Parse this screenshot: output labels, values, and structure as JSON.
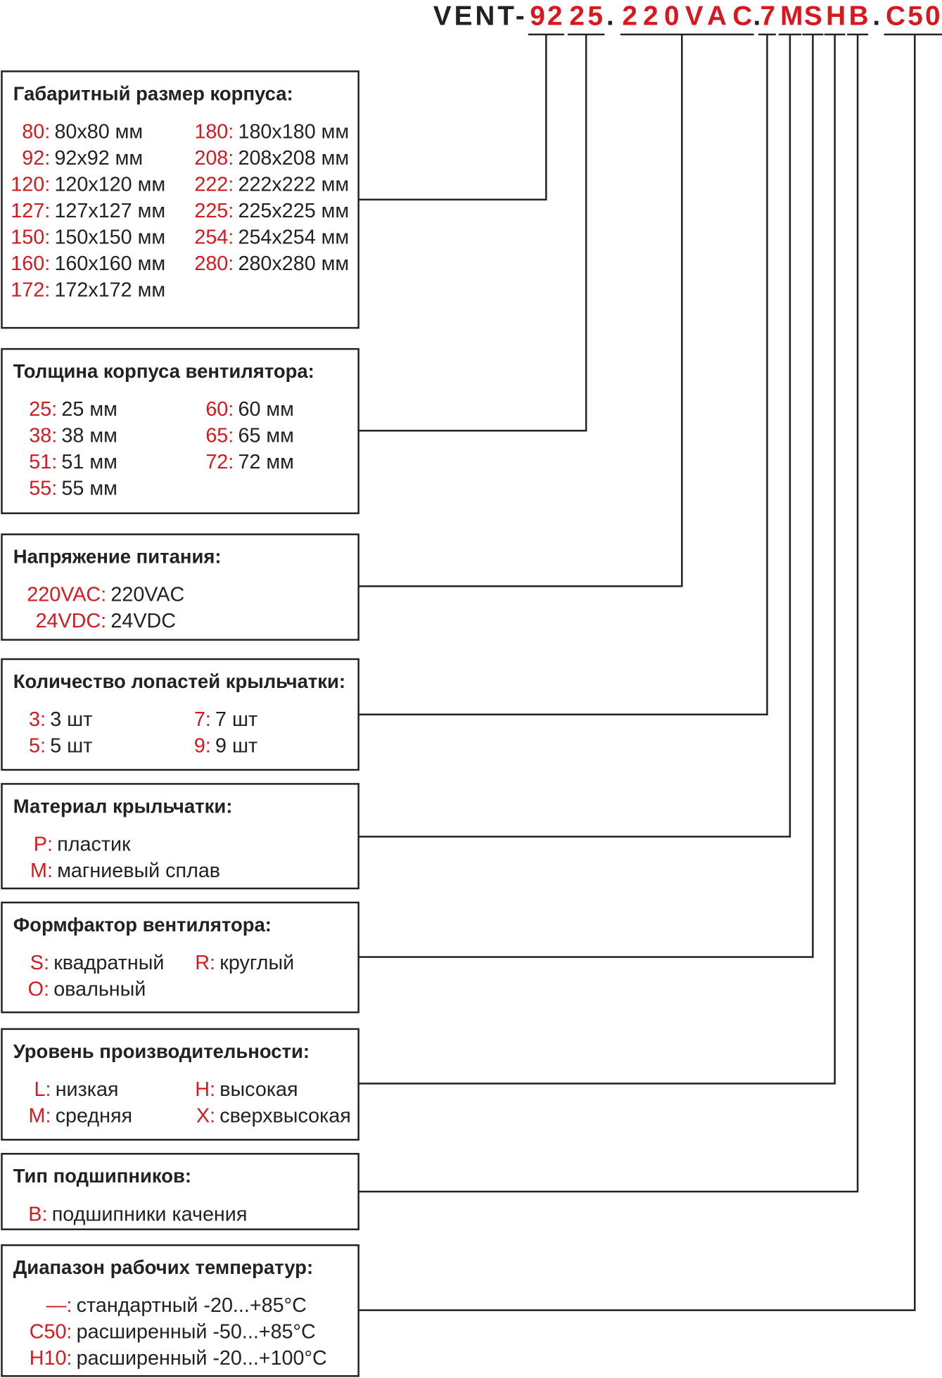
{
  "code": [
    {
      "text": "VENT-",
      "color": "#222222"
    },
    {
      "text": "92",
      "color": "#d7191f"
    },
    {
      "text": "25",
      "color": "#d7191f"
    },
    {
      "text": ".",
      "color": "#222222"
    },
    {
      "text": "220VAC",
      "color": "#d7191f"
    },
    {
      "text": ".",
      "color": "#222222"
    },
    {
      "text": "7",
      "color": "#d7191f"
    },
    {
      "text": "M",
      "color": "#d7191f"
    },
    {
      "text": "S",
      "color": "#d7191f"
    },
    {
      "text": "H",
      "color": "#d7191f"
    },
    {
      "text": "B",
      "color": "#d7191f"
    },
    {
      "text": ".",
      "color": "#222222"
    },
    {
      "text": "C50",
      "color": "#d7191f"
    }
  ],
  "sections": [
    {
      "title": "Габаритный размер корпуса:",
      "left": [
        {
          "code": "80:",
          "text": "80x80 мм"
        },
        {
          "code": "92:",
          "text": "92x92 мм"
        },
        {
          "code": "120:",
          "text": "120x120 мм"
        },
        {
          "code": "127:",
          "text": "127x127 мм"
        },
        {
          "code": "150:",
          "text": "150x150 мм"
        },
        {
          "code": "160:",
          "text": "160x160 мм"
        },
        {
          "code": "172:",
          "text": "172x172 мм"
        }
      ],
      "right": [
        {
          "code": "180:",
          "text": "180x180 мм"
        },
        {
          "code": "208:",
          "text": "208x208 мм"
        },
        {
          "code": "222:",
          "text": "222x222 мм"
        },
        {
          "code": "225:",
          "text": "225x225 мм"
        },
        {
          "code": "254:",
          "text": "254x254 мм"
        },
        {
          "code": "280:",
          "text": "280x280 мм"
        }
      ]
    },
    {
      "title": "Толщина корпуса вентилятора:",
      "left": [
        {
          "code": "25:",
          "text": "25 мм"
        },
        {
          "code": "38:",
          "text": "38 мм"
        },
        {
          "code": "51:",
          "text": "51 мм"
        },
        {
          "code": "55:",
          "text": "55 мм"
        }
      ],
      "right": [
        {
          "code": "60:",
          "text": "60 мм"
        },
        {
          "code": "65:",
          "text": "65 мм"
        },
        {
          "code": "72:",
          "text": "72 мм"
        }
      ]
    },
    {
      "title": "Напряжение питания:",
      "left": [
        {
          "code": "220VAC:",
          "text": "220VAC"
        },
        {
          "code": "24VDC:",
          "text": "24VDC"
        }
      ],
      "right": []
    },
    {
      "title": "Количество лопастей крыльчатки:",
      "left": [
        {
          "code": "3:",
          "text": "3 шт"
        },
        {
          "code": "5:",
          "text": "5 шт"
        }
      ],
      "right": [
        {
          "code": "7:",
          "text": "7 шт"
        },
        {
          "code": "9:",
          "text": "9 шт"
        }
      ]
    },
    {
      "title": "Материал крыльчатки:",
      "left": [
        {
          "code": "P:",
          "text": "пластик"
        },
        {
          "code": "M:",
          "text": "магниевый сплав"
        }
      ],
      "right": []
    },
    {
      "title": "Формфактор вентилятора:",
      "left": [
        {
          "code": "S:",
          "text": "квадратный"
        },
        {
          "code": "O:",
          "text": "овальный"
        }
      ],
      "right": [
        {
          "code": "R:",
          "text": "круглый"
        }
      ]
    },
    {
      "title": "Уровень производительности:",
      "left": [
        {
          "code": "L:",
          "text": "низкая"
        },
        {
          "code": "M:",
          "text": "средняя"
        }
      ],
      "right": [
        {
          "code": "H:",
          "text": "высокая"
        },
        {
          "code": "X:",
          "text": "сверхвысокая"
        }
      ]
    },
    {
      "title": "Тип подшипников:",
      "left": [
        {
          "code": "B:",
          "text": "подшипники качения"
        }
      ],
      "right": []
    },
    {
      "title": "Диапазон рабочих температур:",
      "left": [
        {
          "code": "—:",
          "text": "стандартный -20...+85°C"
        },
        {
          "code": "C50:",
          "text": "расширенный -50...+85°C"
        },
        {
          "code": "H10:",
          "text": "расширенный -20...+100°C"
        }
      ],
      "right": []
    }
  ]
}
